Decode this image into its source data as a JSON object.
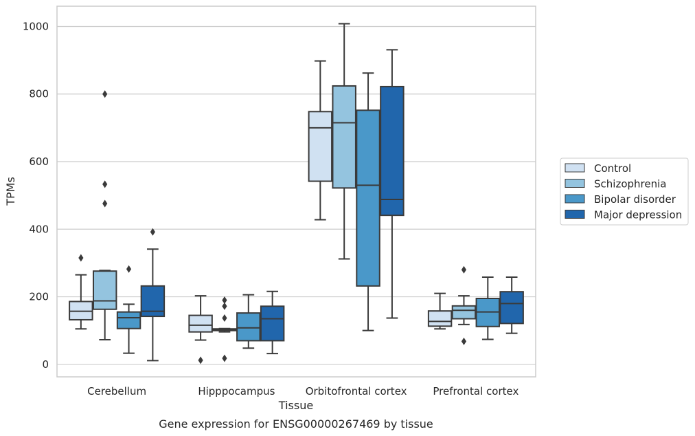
{
  "chart_data": {
    "type": "boxplot",
    "title": "",
    "caption": "Gene expression for ENSG00000267469 by tissue",
    "xlabel": "Tissue",
    "ylabel": "TPMs",
    "ylim": [
      -37,
      1060
    ],
    "yticks": [
      0,
      200,
      400,
      600,
      800,
      1000
    ],
    "grid": "horizontal",
    "legend_position": "right",
    "categories": [
      "Cerebellum",
      "Hipppocampus",
      "Orbitofrontal cortex",
      "Prefrontal cortex"
    ],
    "series": [
      {
        "name": "Control",
        "color": "#d0e1f2",
        "boxes": [
          {
            "whislo": 105,
            "q1": 132,
            "med": 157,
            "q3": 186,
            "whishi": 265,
            "fliers": [
              315
            ]
          },
          {
            "whislo": 72,
            "q1": 96,
            "med": 116,
            "q3": 145,
            "whishi": 203,
            "fliers": [
              12
            ]
          },
          {
            "whislo": 428,
            "q1": 542,
            "med": 700,
            "q3": 748,
            "whishi": 898,
            "fliers": []
          },
          {
            "whislo": 105,
            "q1": 113,
            "med": 127,
            "q3": 158,
            "whishi": 210,
            "fliers": []
          }
        ]
      },
      {
        "name": "Schizophrenia",
        "color": "#94c4df",
        "boxes": [
          {
            "whislo": 73,
            "q1": 163,
            "med": 188,
            "q3": 276,
            "whishi": 278,
            "fliers": [
              800,
              533,
              476
            ]
          },
          {
            "whislo": 96,
            "q1": 100,
            "med": 102,
            "q3": 105,
            "whishi": 106,
            "fliers": [
              190,
              172,
              137,
              18
            ]
          },
          {
            "whislo": 312,
            "q1": 522,
            "med": 715,
            "q3": 824,
            "whishi": 1008,
            "fliers": []
          },
          {
            "whislo": 118,
            "q1": 135,
            "med": 160,
            "q3": 173,
            "whishi": 203,
            "fliers": [
              280,
              68
            ]
          }
        ]
      },
      {
        "name": "Bipolar disorder",
        "color": "#4a98c9",
        "boxes": [
          {
            "whislo": 33,
            "q1": 106,
            "med": 138,
            "q3": 155,
            "whishi": 178,
            "fliers": [
              282
            ]
          },
          {
            "whislo": 48,
            "q1": 70,
            "med": 108,
            "q3": 152,
            "whishi": 206,
            "fliers": []
          },
          {
            "whislo": 100,
            "q1": 232,
            "med": 530,
            "q3": 752,
            "whishi": 862,
            "fliers": []
          },
          {
            "whislo": 74,
            "q1": 112,
            "med": 155,
            "q3": 195,
            "whishi": 258,
            "fliers": []
          }
        ]
      },
      {
        "name": "Major depression",
        "color": "#2166ac",
        "boxes": [
          {
            "whislo": 11,
            "q1": 142,
            "med": 157,
            "q3": 232,
            "whishi": 341,
            "fliers": [
              392
            ]
          },
          {
            "whislo": 32,
            "q1": 70,
            "med": 135,
            "q3": 172,
            "whishi": 216,
            "fliers": []
          },
          {
            "whislo": 137,
            "q1": 441,
            "med": 488,
            "q3": 822,
            "whishi": 931,
            "fliers": []
          },
          {
            "whislo": 92,
            "q1": 121,
            "med": 180,
            "q3": 215,
            "whishi": 258,
            "fliers": []
          }
        ]
      }
    ]
  }
}
